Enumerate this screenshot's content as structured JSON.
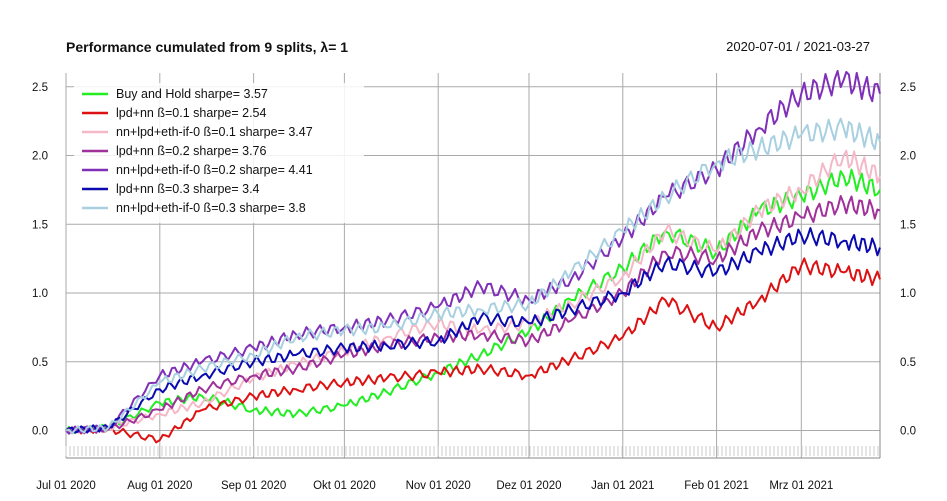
{
  "chart_data": {
    "type": "line",
    "title": "Performance cumulated from 9 splits, λ= 1",
    "date_range": "2020-07-01 / 2021-03-27",
    "xlabel": "",
    "ylabel": "",
    "x": [
      "2020-07-01",
      "2020-07-15",
      "2020-08-01",
      "2020-08-15",
      "2020-09-01",
      "2020-09-15",
      "2020-10-01",
      "2020-10-15",
      "2020-11-01",
      "2020-11-15",
      "2020-12-01",
      "2020-12-15",
      "2021-01-01",
      "2021-01-15",
      "2021-02-01",
      "2021-02-15",
      "2021-03-01",
      "2021-03-15",
      "2021-03-27"
    ],
    "x_range": [
      "2020-07-01",
      "2021-03-27"
    ],
    "x_ticks": [
      "Jul 01 2020",
      "Aug 01 2020",
      "Sep 01 2020",
      "Okt 01 2020",
      "Nov 01 2020",
      "Dez 01 2020",
      "Jan 01 2021",
      "Feb 01 2021",
      "Mrz 01 2021"
    ],
    "y_ticks": [
      "0.0",
      "0.5",
      "1.0",
      "1.5",
      "2.0",
      "2.5"
    ],
    "ylim": [
      -0.2,
      2.6
    ],
    "grid": true,
    "legend_position": "top-left",
    "series": [
      {
        "name": "Buy and Hold  sharpe= 3.57",
        "color": "#22ee22",
        "values": [
          0.0,
          0.02,
          0.2,
          0.25,
          0.15,
          0.12,
          0.18,
          0.28,
          0.42,
          0.55,
          0.72,
          0.95,
          1.18,
          1.45,
          1.3,
          1.6,
          1.7,
          1.85,
          1.75
        ]
      },
      {
        "name": "lpd+nn ß=0.1  sharpe= 2.54",
        "color": "#dd1111",
        "values": [
          0.0,
          0.01,
          -0.07,
          0.15,
          0.25,
          0.3,
          0.35,
          0.38,
          0.42,
          0.45,
          0.4,
          0.52,
          0.68,
          0.95,
          0.75,
          0.95,
          1.2,
          1.15,
          1.1
        ]
      },
      {
        "name": "nn+lpd+eth-if-0 ß=0.1  sharpe= 3.47",
        "color": "#f4b8c8",
        "values": [
          0.0,
          0.02,
          0.12,
          0.2,
          0.38,
          0.48,
          0.58,
          0.68,
          0.78,
          0.72,
          0.78,
          0.92,
          1.12,
          1.45,
          1.3,
          1.6,
          1.75,
          2.0,
          1.85
        ]
      },
      {
        "name": "lpd+nn ß=0.2  sharpe= 3.76",
        "color": "#a0309a",
        "values": [
          0.0,
          0.01,
          0.15,
          0.3,
          0.4,
          0.45,
          0.55,
          0.62,
          0.68,
          0.7,
          0.65,
          0.8,
          1.0,
          1.3,
          1.25,
          1.45,
          1.55,
          1.65,
          1.6
        ]
      },
      {
        "name": "nn+lpd+eth-if-0 ß=0.2  sharpe= 4.41",
        "color": "#8030b8",
        "values": [
          0.0,
          0.02,
          0.4,
          0.5,
          0.6,
          0.7,
          0.75,
          0.8,
          0.9,
          1.05,
          0.95,
          1.1,
          1.4,
          1.7,
          1.9,
          2.2,
          2.45,
          2.55,
          2.45
        ]
      },
      {
        "name": "lpd+nn ß=0.3  sharpe= 3.4",
        "color": "#0a0ab0",
        "values": [
          0.0,
          0.02,
          0.3,
          0.4,
          0.5,
          0.55,
          0.6,
          0.62,
          0.65,
          0.82,
          0.78,
          0.88,
          1.0,
          1.22,
          1.15,
          1.3,
          1.42,
          1.38,
          1.33
        ]
      },
      {
        "name": "nn+lpd+eth-if-0 ß=0.3  sharpe= 3.8",
        "color": "#a8d0e0",
        "values": [
          0.0,
          0.02,
          0.35,
          0.45,
          0.55,
          0.68,
          0.73,
          0.75,
          0.85,
          0.88,
          0.92,
          1.15,
          1.45,
          1.7,
          1.95,
          2.05,
          2.15,
          2.2,
          2.1
        ]
      }
    ]
  }
}
